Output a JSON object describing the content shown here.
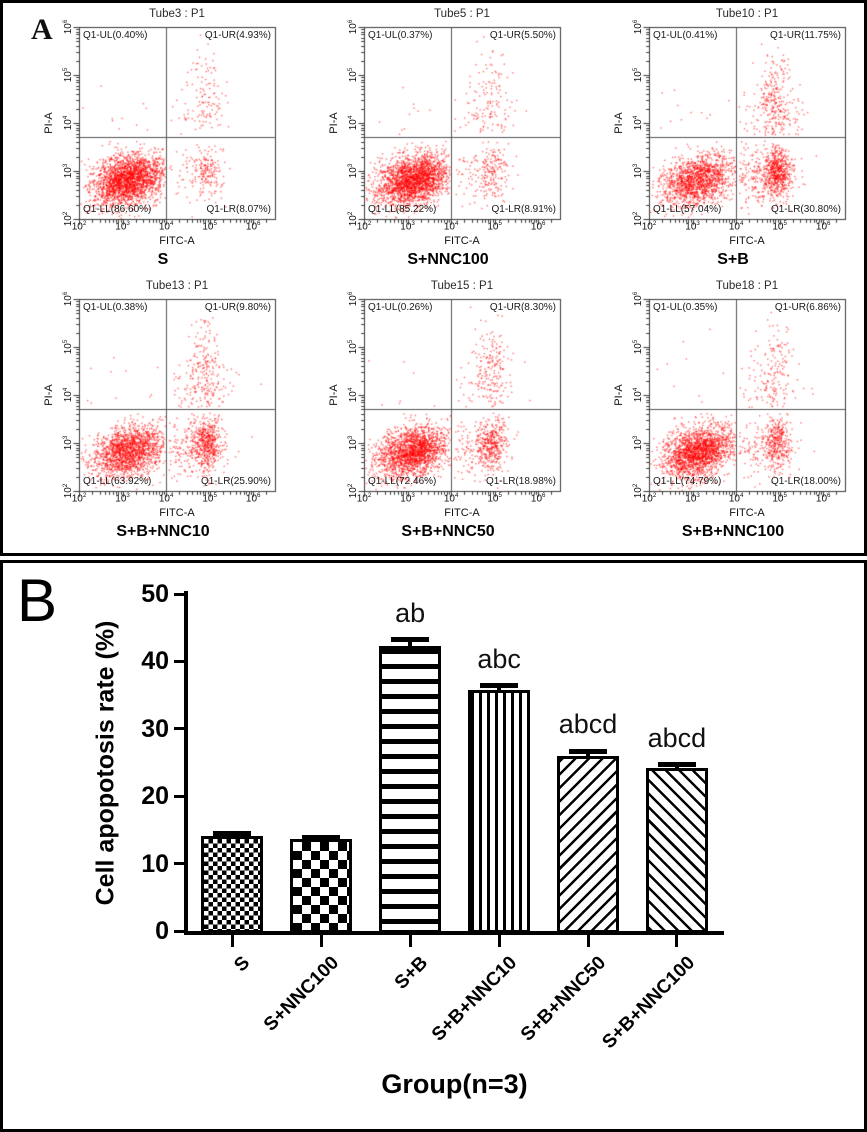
{
  "panel_a": {
    "panel_label": "A"
  },
  "panel_b": {
    "panel_label": "B"
  },
  "colors": {
    "scatter_point": "#ff0000",
    "plot_frame": "#3a3a3a",
    "gate_line": "#555555",
    "bar_fill": "#000000",
    "background": "#ffffff",
    "outer_border": "#000000"
  },
  "chart_data": [
    {
      "type": "scatter",
      "title": "Tube3 : P1",
      "group": "S",
      "xlabel": "FITC-A",
      "ylabel": "PI-A",
      "x_log_range": [
        2,
        6.5
      ],
      "y_log_range": [
        2,
        6
      ],
      "tick_exponents": [
        2,
        3,
        4,
        5,
        6
      ],
      "gate_x_log": 4.0,
      "gate_y_log": 3.7,
      "seed": 3,
      "quadrants": {
        "ul": {
          "label": "Q1-UL(0.40%)",
          "pct": 0.4
        },
        "ur": {
          "label": "Q1-UR(4.93%)",
          "pct": 4.93
        },
        "ll": {
          "label": "Q1-LL(86.60%)",
          "pct": 86.6
        },
        "lr": {
          "label": "Q1-LR(8.07%)",
          "pct": 8.07
        }
      }
    },
    {
      "type": "scatter",
      "title": "Tube5 : P1",
      "group": "S+NNC100",
      "xlabel": "FITC-A",
      "ylabel": "PI-A",
      "x_log_range": [
        2,
        6.5
      ],
      "y_log_range": [
        2,
        6
      ],
      "tick_exponents": [
        2,
        3,
        4,
        5,
        6
      ],
      "gate_x_log": 4.0,
      "gate_y_log": 3.7,
      "seed": 5,
      "quadrants": {
        "ul": {
          "label": "Q1-UL(0.37%)",
          "pct": 0.37
        },
        "ur": {
          "label": "Q1-UR(5.50%)",
          "pct": 5.5
        },
        "ll": {
          "label": "Q1-LL(85.22%)",
          "pct": 85.22
        },
        "lr": {
          "label": "Q1-LR(8.91%)",
          "pct": 8.91
        }
      }
    },
    {
      "type": "scatter",
      "title": "Tube10 : P1",
      "group": "S+B",
      "xlabel": "FITC-A",
      "ylabel": "PI-A",
      "x_log_range": [
        2,
        6.5
      ],
      "y_log_range": [
        2,
        6
      ],
      "tick_exponents": [
        2,
        3,
        4,
        5,
        6
      ],
      "gate_x_log": 4.0,
      "gate_y_log": 3.7,
      "seed": 10,
      "quadrants": {
        "ul": {
          "label": "Q1-UL(0.41%)",
          "pct": 0.41
        },
        "ur": {
          "label": "Q1-UR(11.75%)",
          "pct": 11.75
        },
        "ll": {
          "label": "Q1-LL(57.04%)",
          "pct": 57.04
        },
        "lr": {
          "label": "Q1-LR(30.80%)",
          "pct": 30.8
        }
      }
    },
    {
      "type": "scatter",
      "title": "Tube13 : P1",
      "group": "S+B+NNC10",
      "xlabel": "FITC-A",
      "ylabel": "PI-A",
      "x_log_range": [
        2,
        6.5
      ],
      "y_log_range": [
        2,
        6
      ],
      "tick_exponents": [
        2,
        3,
        4,
        5,
        6
      ],
      "gate_x_log": 4.0,
      "gate_y_log": 3.7,
      "seed": 13,
      "quadrants": {
        "ul": {
          "label": "Q1-UL(0.38%)",
          "pct": 0.38
        },
        "ur": {
          "label": "Q1-UR(9.80%)",
          "pct": 9.8
        },
        "ll": {
          "label": "Q1-LL(63.92%)",
          "pct": 63.92
        },
        "lr": {
          "label": "Q1-LR(25.90%)",
          "pct": 25.9
        }
      }
    },
    {
      "type": "scatter",
      "title": "Tube15 : P1",
      "group": "S+B+NNC50",
      "xlabel": "FITC-A",
      "ylabel": "PI-A",
      "x_log_range": [
        2,
        6.5
      ],
      "y_log_range": [
        2,
        6
      ],
      "tick_exponents": [
        2,
        3,
        4,
        5,
        6
      ],
      "gate_x_log": 4.0,
      "gate_y_log": 3.7,
      "seed": 15,
      "quadrants": {
        "ul": {
          "label": "Q1-UL(0.26%)",
          "pct": 0.26
        },
        "ur": {
          "label": "Q1-UR(8.30%)",
          "pct": 8.3
        },
        "ll": {
          "label": "Q1-LL(72.46%)",
          "pct": 72.46
        },
        "lr": {
          "label": "Q1-LR(18.98%)",
          "pct": 18.98
        }
      }
    },
    {
      "type": "scatter",
      "title": "Tube18 : P1",
      "group": "S+B+NNC100",
      "xlabel": "FITC-A",
      "ylabel": "PI-A",
      "x_log_range": [
        2,
        6.5
      ],
      "y_log_range": [
        2,
        6
      ],
      "tick_exponents": [
        2,
        3,
        4,
        5,
        6
      ],
      "gate_x_log": 4.0,
      "gate_y_log": 3.7,
      "seed": 18,
      "quadrants": {
        "ul": {
          "label": "Q1-UL(0.35%)",
          "pct": 0.35
        },
        "ur": {
          "label": "Q1-UR(6.86%)",
          "pct": 6.86
        },
        "ll": {
          "label": "Q1-LL(74.79%)",
          "pct": 74.79
        },
        "lr": {
          "label": "Q1-LR(18.00%)",
          "pct": 18.0
        }
      }
    },
    {
      "type": "bar",
      "title": "",
      "categories": [
        "S",
        "S+NNC100",
        "S+B",
        "S+B+NNC10",
        "S+B+NNC50",
        "S+B+NNC100"
      ],
      "values": [
        14.1,
        13.6,
        42.3,
        35.8,
        26.0,
        24.2
      ],
      "errors": [
        0.4,
        0.3,
        0.9,
        0.6,
        0.7,
        0.5
      ],
      "annotations": [
        "",
        "",
        "ab",
        "abc",
        "abcd",
        "abcd"
      ],
      "patterns": [
        "checker-fine",
        "checker-coarse",
        "hlines",
        "vlines",
        "diag-up",
        "diag-down"
      ],
      "xlabel": "Group(n=3)",
      "ylabel": "Cell apopotosis rate (%)",
      "ylim": [
        0,
        50
      ],
      "yticks": [
        0,
        10,
        20,
        30,
        40,
        50
      ],
      "grid": false,
      "legend": false
    }
  ]
}
